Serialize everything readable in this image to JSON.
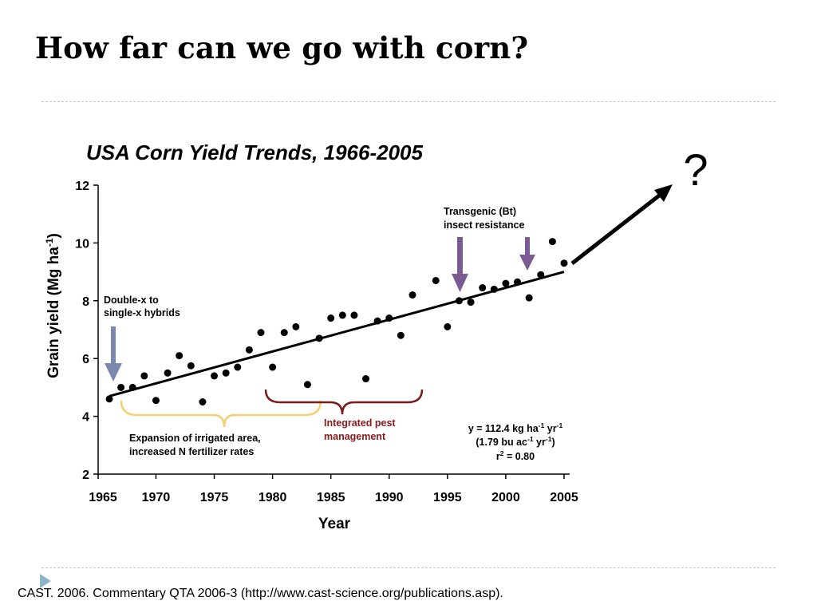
{
  "slide": {
    "title": "How far can we go with corn?",
    "citation": "CAST. 2006. Commentary QTA 2006-3 (http://www.cast-science.org/publications.asp)."
  },
  "colors": {
    "arrow_early": "#7b89b0",
    "arrow_bt": "#7a5c93",
    "brace_irrigation": "#f4cf72",
    "brace_ipm": "#7a1c1c",
    "ipm_text": "#8b1a1a"
  },
  "chart_data": {
    "type": "scatter",
    "title": "USA Corn Yield Trends, 1966-2005",
    "xlabel": "Year",
    "ylabel": "Grain yield (Mg ha-1)",
    "ylabel_parts": {
      "main": "Grain yield (Mg ha",
      "sup": "-1",
      "close": ")"
    },
    "xlim": [
      1965,
      2005
    ],
    "ylim": [
      2,
      12
    ],
    "x_ticks": [
      1965,
      1970,
      1975,
      1980,
      1985,
      1990,
      1995,
      2000,
      2005
    ],
    "y_ticks": [
      2,
      4,
      6,
      8,
      10,
      12
    ],
    "grid": false,
    "legend": "none",
    "series": [
      {
        "points": [
          [
            1966,
            4.6
          ],
          [
            1967,
            5.0
          ],
          [
            1968,
            5.0
          ],
          [
            1969,
            5.4
          ],
          [
            1970,
            4.55
          ],
          [
            1971,
            5.5
          ],
          [
            1972,
            6.1
          ],
          [
            1973,
            5.75
          ],
          [
            1974,
            4.5
          ],
          [
            1975,
            5.4
          ],
          [
            1976,
            5.5
          ],
          [
            1977,
            5.7
          ],
          [
            1978,
            6.3
          ],
          [
            1979,
            6.9
          ],
          [
            1980,
            5.7
          ],
          [
            1981,
            6.9
          ],
          [
            1982,
            7.1
          ],
          [
            1983,
            5.1
          ],
          [
            1984,
            6.7
          ],
          [
            1985,
            7.4
          ],
          [
            1986,
            7.5
          ],
          [
            1987,
            7.5
          ],
          [
            1988,
            5.3
          ],
          [
            1989,
            7.3
          ],
          [
            1990,
            7.4
          ],
          [
            1991,
            6.8
          ],
          [
            1992,
            8.2
          ],
          [
            1994,
            8.7
          ],
          [
            1995,
            7.1
          ],
          [
            1996,
            8.0
          ],
          [
            1997,
            7.95
          ],
          [
            1998,
            8.45
          ],
          [
            1999,
            8.4
          ],
          [
            2000,
            8.6
          ],
          [
            2001,
            8.65
          ],
          [
            2002,
            8.1
          ],
          [
            2003,
            8.9
          ],
          [
            2004,
            10.05
          ],
          [
            2005,
            9.3
          ]
        ]
      }
    ],
    "trendline": {
      "x": [
        1966,
        2005
      ],
      "y": [
        4.7,
        9.0
      ]
    },
    "future_marker": "?",
    "annotations": {
      "hybrids": [
        "Double-x to",
        "single-x hybrids"
      ],
      "bt": [
        "Transgenic (Bt)",
        "insect resistance"
      ],
      "irrigation": [
        "Expansion of irrigated area,",
        "increased N fertilizer rates"
      ],
      "ipm": [
        "Integrated pest",
        "management"
      ],
      "eq1": {
        "base": "y = 112.4  kg ha",
        "sup1": "-1",
        "mid": " yr",
        "sup2": "-1"
      },
      "eq2": {
        "open": "(1.79 bu ac",
        "sup1": "-1",
        "mid": " yr",
        "sup2": "-1",
        "close": ")"
      },
      "eq3": {
        "base": "r",
        "sup": "2",
        "rest": " = 0.80"
      }
    }
  }
}
